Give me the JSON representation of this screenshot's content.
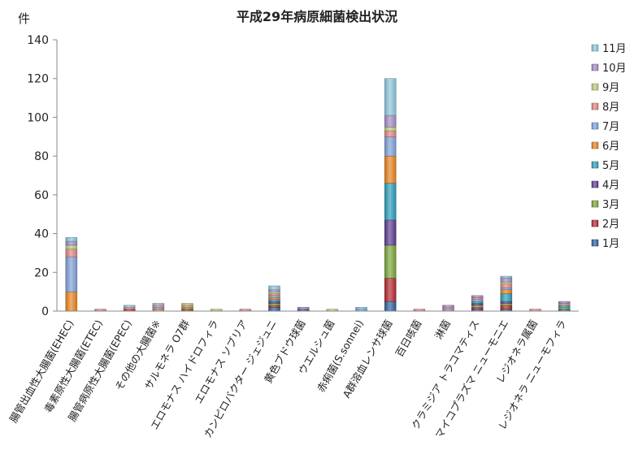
{
  "chart_data": {
    "type": "bar",
    "stacked": true,
    "title": "平成29年病原細菌検出状況",
    "ylabel": "件",
    "xlabel": "",
    "ylim": [
      0,
      140
    ],
    "yticks": [
      0,
      20,
      40,
      60,
      80,
      100,
      120,
      140
    ],
    "grid": false,
    "legend_position": "right",
    "categories": [
      "腸管出血性大腸菌(EHEC)",
      "毒素原性大腸菌(ETEC)",
      "腸管病原性大腸菌(EPEC)",
      "その他の大腸菌※",
      "サルモネラ O7群",
      "エロモナス ハイドロフィラ",
      "エロモナス ソブリア",
      "カンピロバクター ジェジュニ",
      "黄色ブドウ球菌",
      "ウエルシュ菌",
      "赤痢菌(S.sonnei)",
      "A群溶血レンサ球菌",
      "百日咳菌",
      "淋菌",
      "クラミジア トラコマティス",
      "マイコプラズマ ニューモニエ",
      "レジオネラ属菌",
      "レジオネラ ニューモフィラ"
    ],
    "series": [
      {
        "name": "1月",
        "color": "#2e5f9e",
        "values": [
          0,
          0,
          0,
          0,
          0,
          0,
          0,
          2,
          0,
          0,
          0,
          5,
          0,
          0,
          1,
          1,
          0,
          1
        ]
      },
      {
        "name": "2月",
        "color": "#b3282d",
        "values": [
          0,
          0,
          1,
          0,
          1,
          0,
          0,
          1,
          0,
          0,
          0,
          12,
          0,
          0,
          1,
          2,
          0,
          0
        ]
      },
      {
        "name": "3月",
        "color": "#7aa43a",
        "values": [
          0,
          0,
          0,
          0,
          1,
          0,
          0,
          1,
          0,
          0,
          0,
          17,
          0,
          0,
          1,
          1,
          0,
          1
        ]
      },
      {
        "name": "4月",
        "color": "#5c3b8e",
        "values": [
          0,
          0,
          0,
          0,
          0,
          0,
          0,
          1,
          1,
          0,
          0,
          13,
          0,
          0,
          1,
          1,
          0,
          0
        ]
      },
      {
        "name": "5月",
        "color": "#2a9cb8",
        "values": [
          0,
          0,
          0,
          0,
          0,
          0,
          0,
          1,
          0,
          0,
          0,
          19,
          0,
          0,
          1,
          4,
          0,
          1
        ]
      },
      {
        "name": "6月",
        "color": "#e8821e",
        "values": [
          10,
          0,
          0,
          1,
          0,
          0,
          0,
          1,
          0,
          0,
          0,
          14,
          0,
          0,
          0,
          2,
          0,
          0
        ]
      },
      {
        "name": "7月",
        "color": "#7f9fd6",
        "values": [
          18,
          0,
          0,
          1,
          0,
          0,
          0,
          1,
          0,
          0,
          1,
          10,
          0,
          1,
          1,
          1,
          0,
          0
        ]
      },
      {
        "name": "8月",
        "color": "#e08484",
        "values": [
          4,
          1,
          1,
          1,
          1,
          0,
          1,
          1,
          0,
          0,
          0,
          3,
          1,
          1,
          1,
          2,
          1,
          1
        ]
      },
      {
        "name": "9月",
        "color": "#b8cc7c",
        "values": [
          2,
          0,
          0,
          0,
          1,
          1,
          0,
          1,
          0,
          1,
          0,
          2,
          0,
          0,
          0,
          1,
          0,
          0
        ]
      },
      {
        "name": "10月",
        "color": "#a08cc4",
        "values": [
          2,
          0,
          0,
          0,
          0,
          0,
          0,
          1,
          1,
          0,
          0,
          6,
          0,
          1,
          1,
          2,
          0,
          1
        ]
      },
      {
        "name": "11月",
        "color": "#8cc4dc",
        "values": [
          2,
          0,
          1,
          1,
          0,
          0,
          0,
          2,
          0,
          0,
          1,
          19,
          0,
          0,
          0,
          1,
          0,
          0
        ]
      }
    ]
  }
}
